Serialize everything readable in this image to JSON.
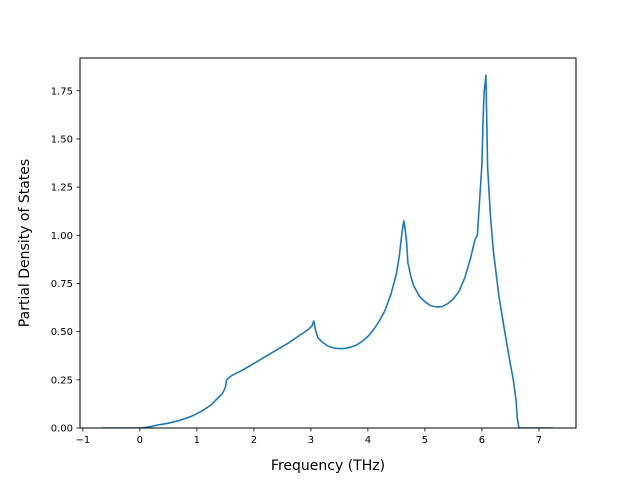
{
  "chart_data": {
    "type": "line",
    "title": "",
    "xlabel": "Frequency (THz)",
    "ylabel": "Partial Density of States",
    "xlim": [
      -1.05,
      7.65
    ],
    "ylim": [
      0,
      1.92
    ],
    "xticks": [
      -1,
      0,
      1,
      2,
      3,
      4,
      5,
      6,
      7
    ],
    "xtick_labels": [
      "−1",
      "0",
      "1",
      "2",
      "3",
      "4",
      "5",
      "6",
      "7"
    ],
    "yticks": [
      0.0,
      0.25,
      0.5,
      0.75,
      1.0,
      1.25,
      1.5,
      1.75
    ],
    "ytick_labels": [
      "0.00",
      "0.25",
      "0.50",
      "0.75",
      "1.00",
      "1.25",
      "1.50",
      "1.75"
    ],
    "grid": false,
    "legend": "none",
    "series": [
      {
        "color": "#1f77b4",
        "x": [
          -0.67,
          0.0,
          0.15,
          0.3,
          0.5,
          0.7,
          0.9,
          1.1,
          1.25,
          1.35,
          1.45,
          1.5,
          1.52,
          1.6,
          1.8,
          2.0,
          2.2,
          2.4,
          2.6,
          2.8,
          2.95,
          3.02,
          3.05,
          3.08,
          3.12,
          3.2,
          3.3,
          3.4,
          3.5,
          3.6,
          3.7,
          3.8,
          3.9,
          4.0,
          4.1,
          4.2,
          4.3,
          4.4,
          4.5,
          4.55,
          4.6,
          4.63,
          4.65,
          4.68,
          4.7,
          4.75,
          4.8,
          4.9,
          5.0,
          5.1,
          5.2,
          5.3,
          5.4,
          5.5,
          5.6,
          5.7,
          5.8,
          5.88,
          5.92,
          6.0,
          6.02,
          6.04,
          6.06,
          6.07,
          6.1,
          6.15,
          6.2,
          6.3,
          6.4,
          6.5,
          6.55,
          6.6,
          6.62,
          6.65,
          7.25
        ],
        "y": [
          0.0,
          0.0,
          0.005,
          0.015,
          0.025,
          0.04,
          0.06,
          0.09,
          0.12,
          0.15,
          0.18,
          0.21,
          0.25,
          0.27,
          0.3,
          0.335,
          0.37,
          0.405,
          0.44,
          0.48,
          0.51,
          0.53,
          0.555,
          0.51,
          0.47,
          0.445,
          0.425,
          0.415,
          0.412,
          0.413,
          0.42,
          0.43,
          0.45,
          0.475,
          0.51,
          0.555,
          0.61,
          0.69,
          0.8,
          0.89,
          1.02,
          1.075,
          1.04,
          0.96,
          0.86,
          0.79,
          0.74,
          0.685,
          0.655,
          0.635,
          0.628,
          0.63,
          0.645,
          0.67,
          0.71,
          0.78,
          0.88,
          0.98,
          1.0,
          1.37,
          1.6,
          1.75,
          1.8,
          1.83,
          1.35,
          1.1,
          0.92,
          0.68,
          0.5,
          0.33,
          0.25,
          0.14,
          0.05,
          0.0,
          0.0
        ]
      }
    ]
  }
}
